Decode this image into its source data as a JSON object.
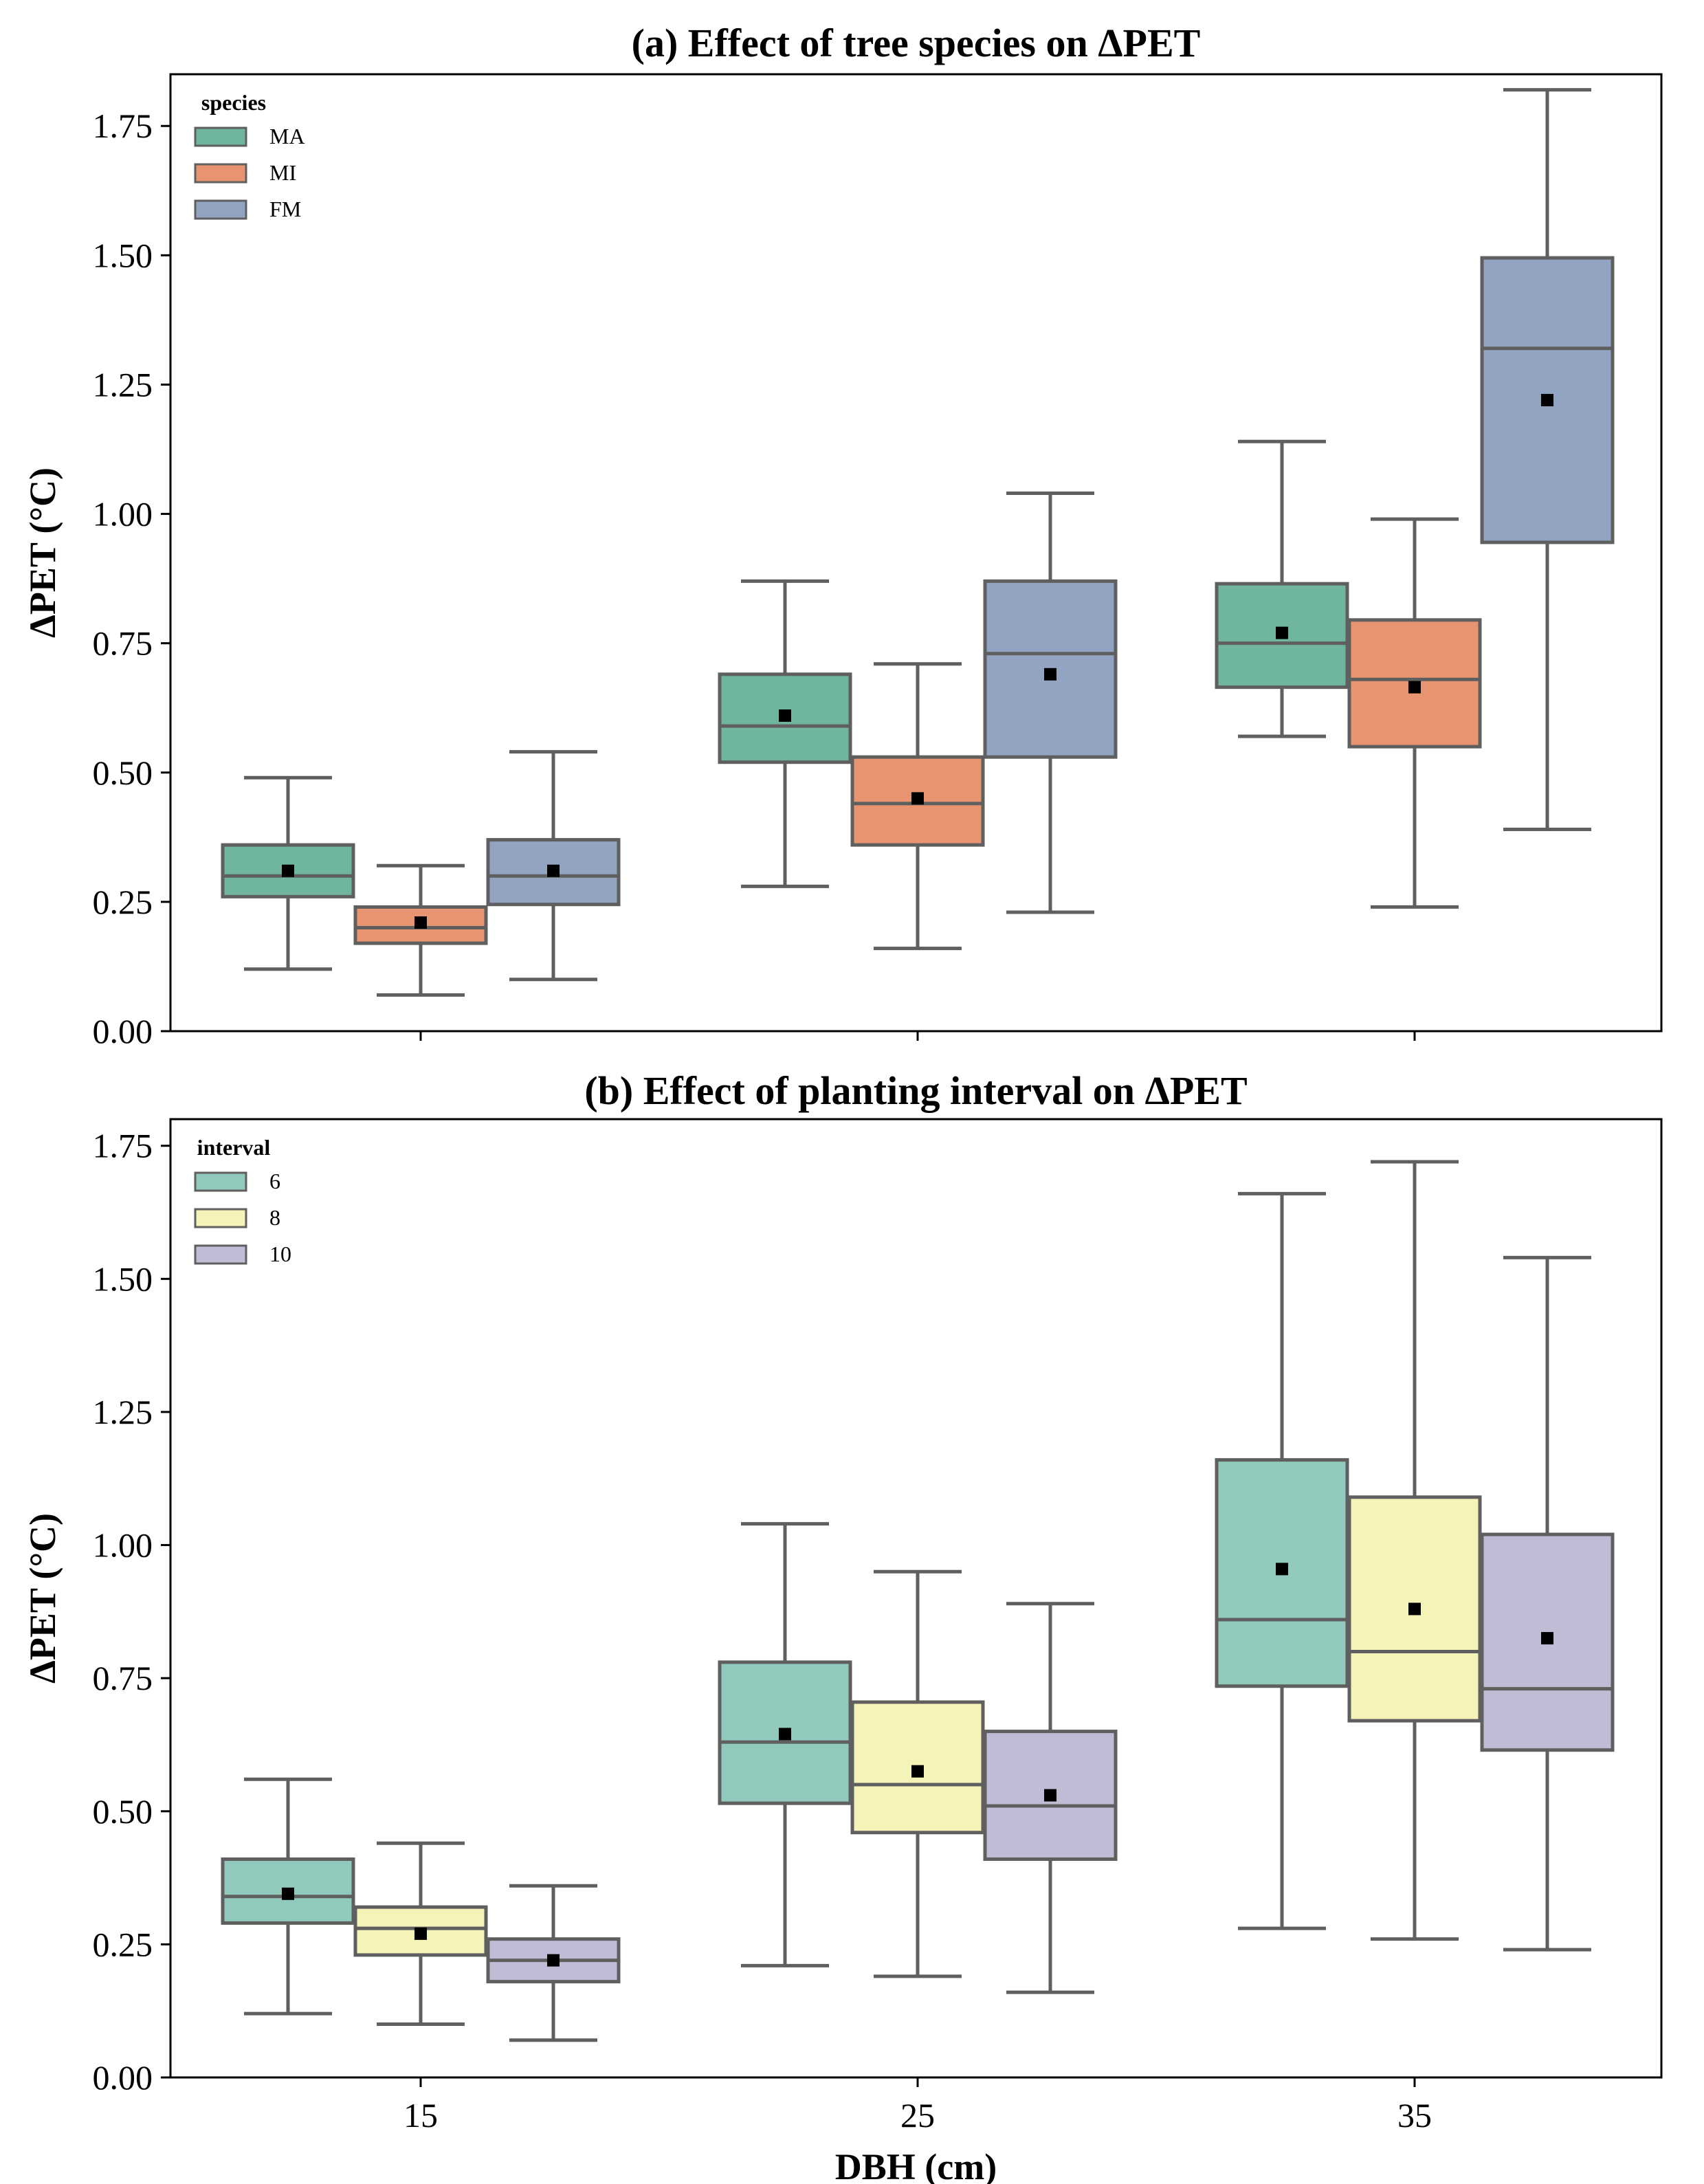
{
  "chart_data": [
    {
      "type": "box",
      "title": "(a) Effect of tree species on ΔPET",
      "ylabel": "ΔPET (°C)",
      "xlabel": "",
      "ylim": [
        0,
        1.85
      ],
      "yticks": [
        "0.00",
        "0.25",
        "0.50",
        "0.75",
        "1.00",
        "1.25",
        "1.50",
        "1.75"
      ],
      "categories": [
        "15",
        "25",
        "35"
      ],
      "legend": {
        "title": "species",
        "position": "top-left"
      },
      "series": [
        {
          "name": "MA",
          "color": "#6fb5a0",
          "boxes": [
            {
              "whislo": 0.12,
              "q1": 0.26,
              "med": 0.3,
              "q3": 0.36,
              "whishi": 0.49,
              "mean": 0.31
            },
            {
              "whislo": 0.28,
              "q1": 0.52,
              "med": 0.59,
              "q3": 0.69,
              "whishi": 0.87,
              "mean": 0.61
            },
            {
              "whislo": 0.57,
              "q1": 0.665,
              "med": 0.75,
              "q3": 0.865,
              "whishi": 1.14,
              "mean": 0.77
            }
          ]
        },
        {
          "name": "MI",
          "color": "#e99471",
          "boxes": [
            {
              "whislo": 0.07,
              "q1": 0.17,
              "med": 0.2,
              "q3": 0.24,
              "whishi": 0.32,
              "mean": 0.21
            },
            {
              "whislo": 0.16,
              "q1": 0.36,
              "med": 0.44,
              "q3": 0.53,
              "whishi": 0.71,
              "mean": 0.45
            },
            {
              "whislo": 0.24,
              "q1": 0.55,
              "med": 0.68,
              "q3": 0.795,
              "whishi": 0.99,
              "mean": 0.665
            }
          ]
        },
        {
          "name": "FM",
          "color": "#93a3c2",
          "boxes": [
            {
              "whislo": 0.1,
              "q1": 0.245,
              "med": 0.3,
              "q3": 0.37,
              "whishi": 0.54,
              "mean": 0.31
            },
            {
              "whislo": 0.23,
              "q1": 0.53,
              "med": 0.73,
              "q3": 0.87,
              "whishi": 1.04,
              "mean": 0.69
            },
            {
              "whislo": 0.39,
              "q1": 0.945,
              "med": 1.32,
              "q3": 1.495,
              "whishi": 1.82,
              "mean": 1.22
            }
          ]
        }
      ]
    },
    {
      "type": "box",
      "title": "(b) Effect of planting interval on ΔPET",
      "ylabel": "ΔPET (°C)",
      "xlabel": "DBH (cm)",
      "ylim": [
        0,
        1.8
      ],
      "yticks": [
        "0.00",
        "0.25",
        "0.50",
        "0.75",
        "1.00",
        "1.25",
        "1.50",
        "1.75"
      ],
      "categories": [
        "15",
        "25",
        "35"
      ],
      "legend": {
        "title": "interval",
        "position": "top-left"
      },
      "series": [
        {
          "name": "6",
          "color": "#92c9bd",
          "boxes": [
            {
              "whislo": 0.12,
              "q1": 0.29,
              "med": 0.34,
              "q3": 0.41,
              "whishi": 0.56,
              "mean": 0.345
            },
            {
              "whislo": 0.21,
              "q1": 0.515,
              "med": 0.63,
              "q3": 0.78,
              "whishi": 1.04,
              "mean": 0.645
            },
            {
              "whislo": 0.28,
              "q1": 0.735,
              "med": 0.86,
              "q3": 1.16,
              "whishi": 1.66,
              "mean": 0.955
            }
          ]
        },
        {
          "name": "8",
          "color": "#f5f3b8",
          "boxes": [
            {
              "whislo": 0.1,
              "q1": 0.23,
              "med": 0.28,
              "q3": 0.32,
              "whishi": 0.44,
              "mean": 0.27
            },
            {
              "whislo": 0.19,
              "q1": 0.46,
              "med": 0.55,
              "q3": 0.705,
              "whishi": 0.95,
              "mean": 0.575
            },
            {
              "whislo": 0.26,
              "q1": 0.67,
              "med": 0.8,
              "q3": 1.09,
              "whishi": 1.72,
              "mean": 0.88
            }
          ]
        },
        {
          "name": "10",
          "color": "#c1bcd6",
          "boxes": [
            {
              "whislo": 0.07,
              "q1": 0.18,
              "med": 0.22,
              "q3": 0.26,
              "whishi": 0.36,
              "mean": 0.22
            },
            {
              "whislo": 0.16,
              "q1": 0.41,
              "med": 0.51,
              "q3": 0.65,
              "whishi": 0.89,
              "mean": 0.53
            },
            {
              "whislo": 0.24,
              "q1": 0.615,
              "med": 0.73,
              "q3": 1.02,
              "whishi": 1.54,
              "mean": 0.825
            }
          ]
        }
      ]
    }
  ]
}
